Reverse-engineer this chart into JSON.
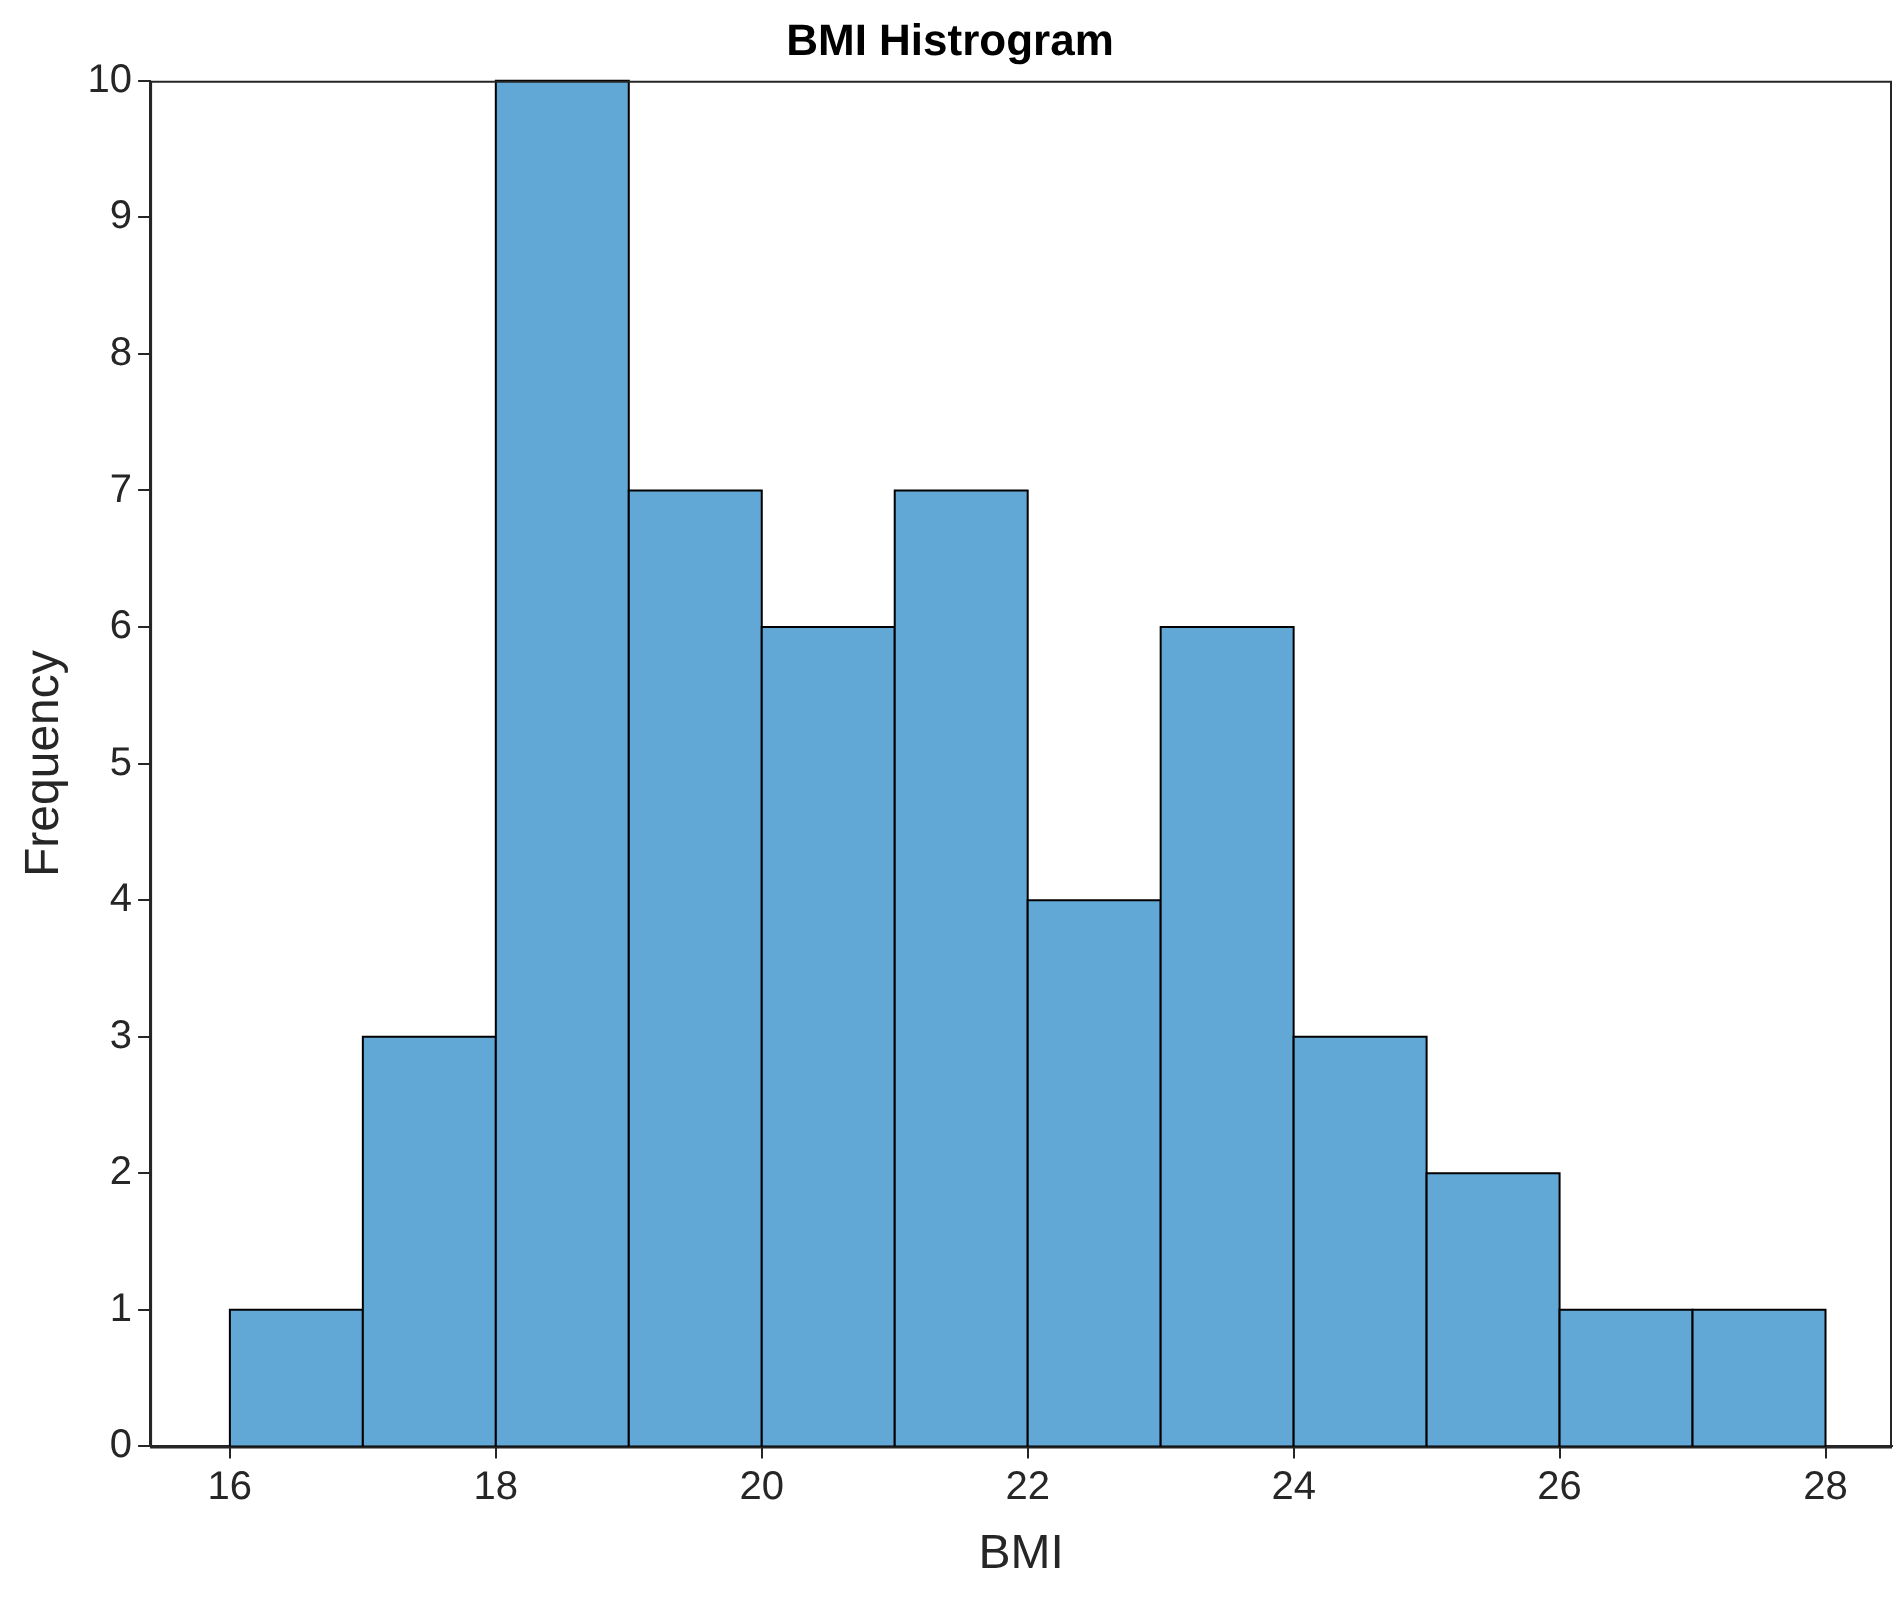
{
  "chart_data": {
    "type": "histogram",
    "title": "BMI Histrogram",
    "xlabel": "BMI",
    "ylabel": "Frequency",
    "bins": [
      16,
      17,
      18,
      19,
      20,
      21,
      22,
      23,
      24,
      25,
      26,
      27,
      28
    ],
    "values": [
      1,
      3,
      10,
      7,
      6,
      7,
      4,
      6,
      3,
      2,
      1,
      1
    ],
    "color": "#62a8d6",
    "xlim": [
      15.4,
      28.5
    ],
    "xticks": [
      16,
      18,
      20,
      22,
      24,
      26,
      28
    ],
    "ylim": [
      0,
      10
    ],
    "yticks": [
      0,
      1,
      2,
      3,
      4,
      5,
      6,
      7,
      8,
      9,
      10
    ]
  }
}
